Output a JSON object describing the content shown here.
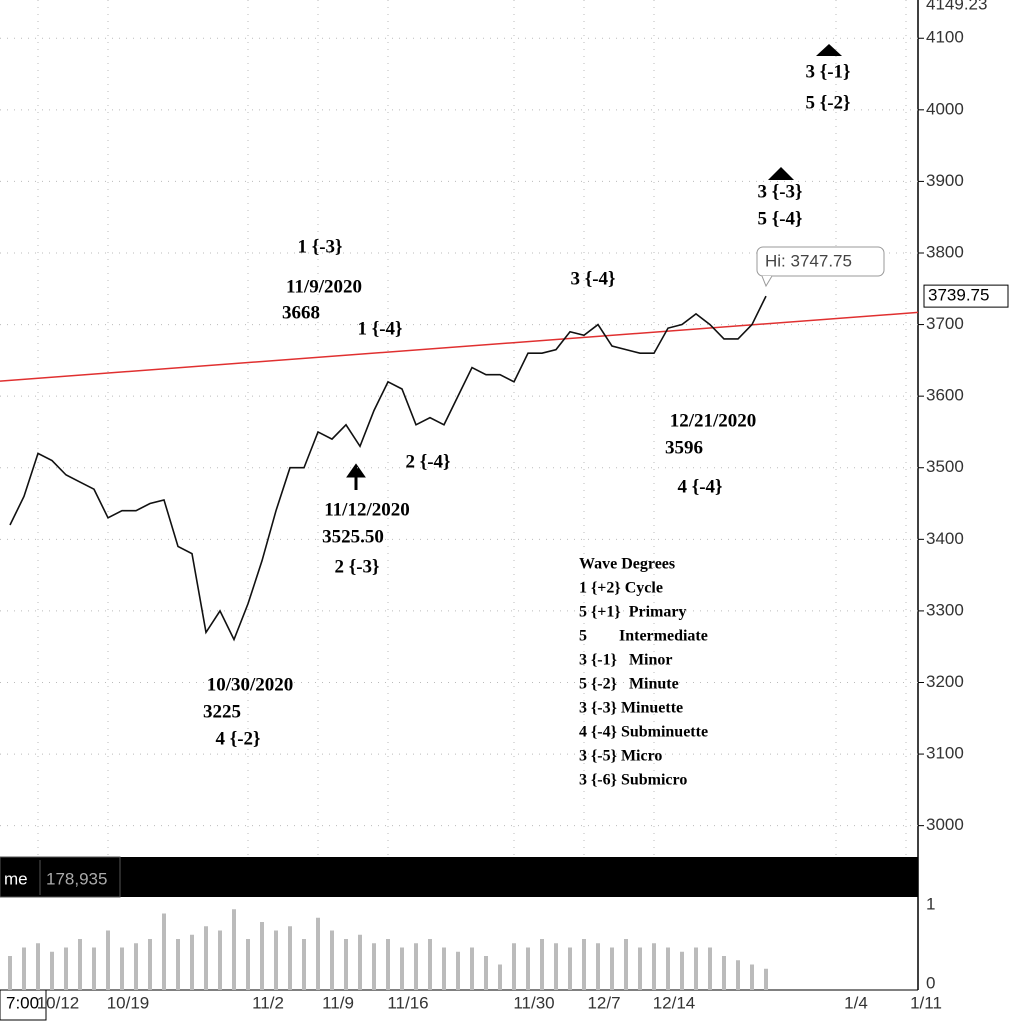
{
  "chart_data": {
    "type": "line",
    "categories": [
      null,
      null,
      "10/12",
      null,
      null,
      null,
      null,
      "10/19",
      null,
      null,
      null,
      null,
      null,
      null,
      null,
      null,
      null,
      "11/2",
      null,
      null,
      null,
      null,
      "11/9",
      null,
      null,
      null,
      null,
      "11/16",
      null,
      null,
      null,
      null,
      null,
      null,
      null,
      null,
      "11/30",
      null,
      null,
      null,
      null,
      "12/7",
      null,
      null,
      null,
      null,
      "12/14",
      null,
      null,
      null,
      null,
      null,
      null,
      null,
      null,
      null,
      null,
      null,
      null,
      "1/4",
      null,
      null,
      null,
      null,
      "1/11"
    ],
    "series": [
      {
        "color": "#111111",
        "values": [
          3420,
          3460,
          3520,
          3510,
          3490,
          3480,
          3470,
          3430,
          3440,
          3440,
          3450,
          3455,
          3390,
          3380,
          3270,
          3300,
          3260,
          3310,
          3370,
          3440,
          3500,
          3500,
          3550,
          3540,
          3560,
          3530,
          3580,
          3620,
          3610,
          3560,
          3570,
          3560,
          3600,
          3640,
          3630,
          3630,
          3620,
          3660,
          3660,
          3665,
          3690,
          3685,
          3700,
          3670,
          3665,
          3660,
          3660,
          3695,
          3700,
          3715,
          3700,
          3680,
          3680,
          3700,
          3739.75,
          null,
          null,
          null,
          null,
          null,
          null,
          null,
          null,
          null,
          null
        ]
      }
    ],
    "ylim": [
      2959,
      4149.23
    ],
    "yticks": [
      3000,
      3100,
      3200,
      3300,
      3400,
      3500,
      3600,
      3700,
      3800,
      3900,
      4000,
      4100
    ],
    "grid": true,
    "trendline": {
      "color": "#e03030",
      "values": [
        3621,
        3717
      ]
    },
    "high_label": "Hi: 3747.75",
    "time_label": "7:00",
    "annotations": [
      "1 {-3}",
      "11/9/2020",
      "3668",
      "1 {-4}",
      "3 {-4}",
      "11/12/2020",
      "3525.50",
      "2 {-3}",
      "2 {-4}",
      "12/21/2020",
      "3596",
      "4 {-4}",
      "10/30/2020",
      "3225",
      "4 {-2}",
      "3 {-3}",
      "5 {-4}",
      "3 {-1}",
      "5 {-2}"
    ],
    "legend_title": "Wave Degrees",
    "legend_items": [
      "1 {+2} Cycle",
      "5 {+1}  Primary",
      "5        Intermediate",
      "3 {-1}   Minor",
      "5 {-2}   Minute",
      "3 {-3} Minuette",
      "4 {-4} Subminuette",
      "3 {-5} Micro",
      "3 {-6} Submicro"
    ],
    "volume": {
      "label": "me",
      "last": "178,935",
      "color": "#bbbbbb",
      "ylim": [
        0,
        1
      ],
      "yticks": [
        0,
        1
      ],
      "values": [
        0.4,
        0.5,
        0.55,
        0.45,
        0.5,
        0.6,
        0.5,
        0.7,
        0.5,
        0.55,
        0.6,
        0.9,
        0.6,
        0.65,
        0.75,
        0.7,
        0.95,
        0.6,
        0.8,
        0.7,
        0.75,
        0.6,
        0.85,
        0.7,
        0.6,
        0.65,
        0.55,
        0.6,
        0.5,
        0.55,
        0.6,
        0.5,
        0.45,
        0.5,
        0.4,
        0.3,
        0.55,
        0.5,
        0.6,
        0.55,
        0.5,
        0.6,
        0.55,
        0.5,
        0.6,
        0.5,
        0.55,
        0.5,
        0.45,
        0.5,
        0.5,
        0.4,
        0.35,
        0.3,
        0.25,
        null,
        null,
        null,
        null,
        null,
        null,
        null,
        null,
        null,
        null
      ]
    }
  }
}
